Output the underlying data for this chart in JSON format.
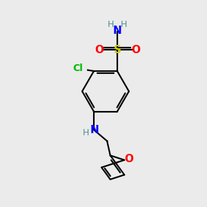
{
  "background_color": "#ebebeb",
  "atom_colors": {
    "C": "#000000",
    "H": "#4a9090",
    "N": "#0000ff",
    "O": "#ff0000",
    "S": "#cccc00",
    "Cl": "#00bb00"
  },
  "bond_color": "#000000",
  "bond_width": 1.6
}
